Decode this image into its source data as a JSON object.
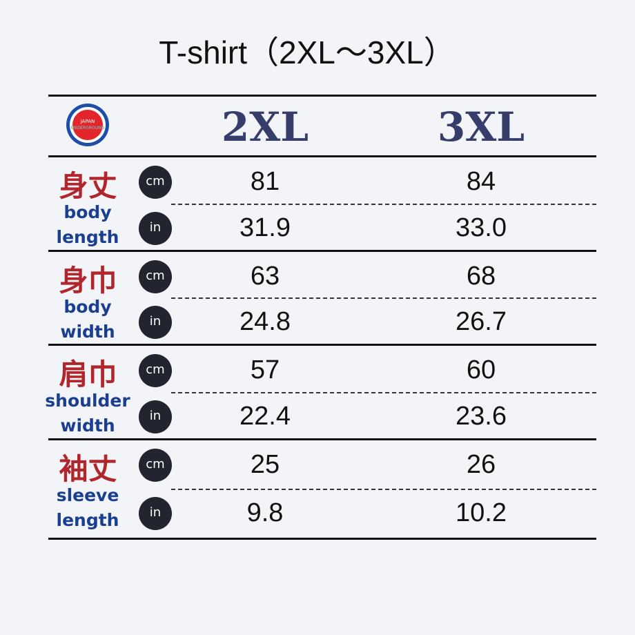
{
  "title": "T-shirt（2XL〜3XL）",
  "logo": {
    "text": "JAPAN UNDERGROUND",
    "colors": {
      "red": "#e2262b",
      "blue": "#1d4fa8"
    }
  },
  "sizes": [
    "2XL",
    "3XL"
  ],
  "units": {
    "cm": "cm",
    "in": "in"
  },
  "rows": [
    {
      "jp": "身丈",
      "en1": "body",
      "en2": "length",
      "cm": [
        "81",
        "84"
      ],
      "in": [
        "31.9",
        "33.0"
      ]
    },
    {
      "jp": "身巾",
      "en1": "body",
      "en2": "width",
      "cm": [
        "63",
        "68"
      ],
      "in": [
        "24.8",
        "26.7"
      ]
    },
    {
      "jp": "肩巾",
      "en1": "shoulder",
      "en2": "width",
      "cm": [
        "57",
        "60"
      ],
      "in": [
        "22.4",
        "23.6"
      ]
    },
    {
      "jp": "袖丈",
      "en1": "sleeve",
      "en2": "length",
      "cm": [
        "25",
        "26"
      ],
      "in": [
        "9.8",
        "10.2"
      ]
    }
  ],
  "colors": {
    "label_jp": "#b1262c",
    "label_en": "#1b3f90",
    "size_header": "#363d6a",
    "unit_badge": "#22242f"
  }
}
